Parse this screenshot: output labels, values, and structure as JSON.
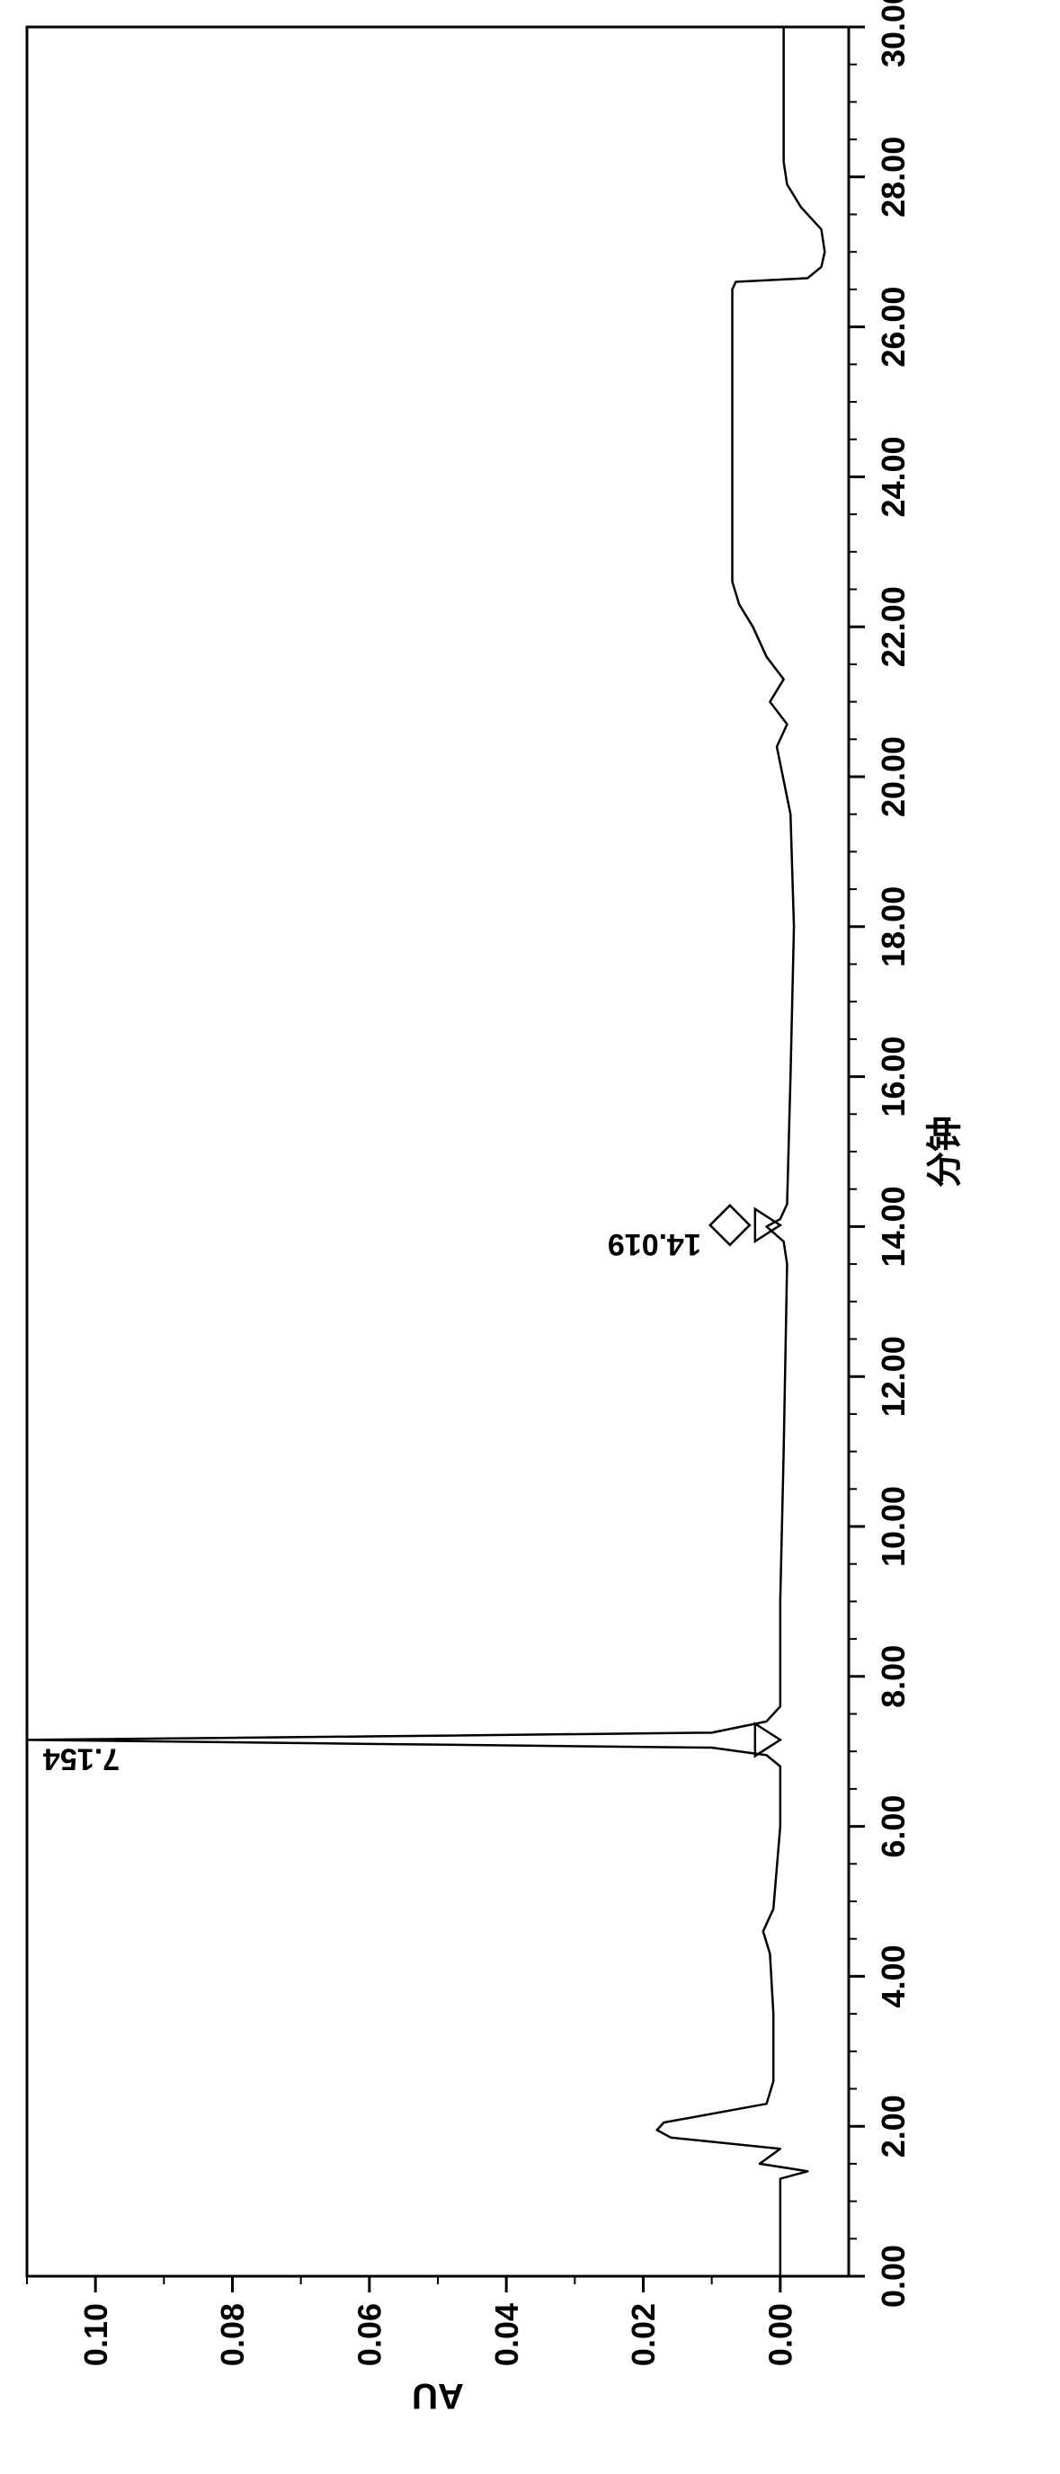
{
  "chart": {
    "type": "line",
    "rotation": 90,
    "background_color": "#ffffff",
    "line_color": "#000000",
    "axis_color": "#000000",
    "text_color": "#000000",
    "axis_stroke_width": 3,
    "trace_stroke_width": 2.5,
    "tick_font_size": 36,
    "label_font_size": 40,
    "peak_label_font_size": 34,
    "x_axis": {
      "label": "分钟",
      "min": 0.0,
      "max": 30.0,
      "major_ticks": [
        0.0,
        2.0,
        4.0,
        6.0,
        8.0,
        10.0,
        12.0,
        14.0,
        16.0,
        18.0,
        20.0,
        22.0,
        24.0,
        26.0,
        28.0,
        30.0
      ],
      "tick_labels": [
        "0.00",
        "2.00",
        "4.00",
        "6.00",
        "8.00",
        "10.00",
        "12.00",
        "14.00",
        "16.00",
        "18.00",
        "20.00",
        "22.00",
        "24.00",
        "26.00",
        "28.00",
        "30.00"
      ],
      "minor_tick_step": 0.5,
      "major_tick_len": 18,
      "minor_tick_len": 9
    },
    "y_axis": {
      "label": "AU",
      "min": -0.01,
      "max": 0.11,
      "major_ticks": [
        0.0,
        0.02,
        0.04,
        0.06,
        0.08,
        0.1
      ],
      "tick_labels": [
        "0.00",
        "0.02",
        "0.04",
        "0.06",
        "0.08",
        "0.10"
      ],
      "minor_tick_step": 0.01,
      "major_tick_len": 18,
      "minor_tick_len": 9
    },
    "peaks": [
      {
        "rt": 7.154,
        "label": "7.154",
        "marker": "triangle",
        "at_top": true
      },
      {
        "rt": 14.019,
        "label": "14.019",
        "marker": "triangle+diamond",
        "at_top": false
      }
    ],
    "trace": [
      [
        0.0,
        0.0
      ],
      [
        1.3,
        0.0
      ],
      [
        1.4,
        -0.004
      ],
      [
        1.5,
        0.003
      ],
      [
        1.7,
        0.0
      ],
      [
        1.85,
        0.016
      ],
      [
        1.95,
        0.018
      ],
      [
        2.05,
        0.017
      ],
      [
        2.3,
        0.002
      ],
      [
        2.6,
        0.001
      ],
      [
        3.5,
        0.001
      ],
      [
        4.3,
        0.0015
      ],
      [
        4.6,
        0.0025
      ],
      [
        4.9,
        0.001
      ],
      [
        6.0,
        0.0
      ],
      [
        6.8,
        0.0
      ],
      [
        6.95,
        0.002
      ],
      [
        7.05,
        0.01
      ],
      [
        7.1,
        0.06
      ],
      [
        7.154,
        0.11
      ],
      [
        7.2,
        0.06
      ],
      [
        7.25,
        0.01
      ],
      [
        7.4,
        0.002
      ],
      [
        7.6,
        0.0
      ],
      [
        9.0,
        0.0
      ],
      [
        11.0,
        -0.0005
      ],
      [
        13.5,
        -0.001
      ],
      [
        13.8,
        -0.0005
      ],
      [
        14.0,
        0.002
      ],
      [
        14.1,
        0.0
      ],
      [
        14.3,
        -0.001
      ],
      [
        16.0,
        -0.0015
      ],
      [
        18.0,
        -0.002
      ],
      [
        19.5,
        -0.0015
      ],
      [
        20.4,
        0.0005
      ],
      [
        20.7,
        -0.001
      ],
      [
        21.0,
        0.0015
      ],
      [
        21.3,
        -0.0005
      ],
      [
        21.6,
        0.002
      ],
      [
        22.0,
        0.004
      ],
      [
        22.3,
        0.006
      ],
      [
        22.6,
        0.007
      ],
      [
        26.5,
        0.007
      ],
      [
        26.6,
        0.0065
      ],
      [
        26.65,
        -0.004
      ],
      [
        26.8,
        -0.006
      ],
      [
        27.0,
        -0.0065
      ],
      [
        27.3,
        -0.006
      ],
      [
        27.6,
        -0.003
      ],
      [
        27.9,
        -0.001
      ],
      [
        28.2,
        -0.0005
      ],
      [
        30.0,
        -0.0005
      ]
    ]
  }
}
